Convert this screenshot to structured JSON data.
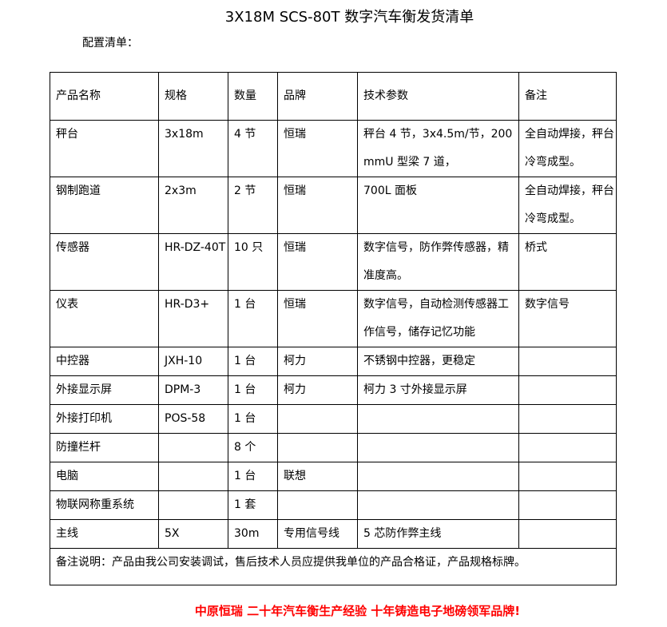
{
  "title": "3X18M SCS-80T 数字汽车衡发货清单",
  "subtitle": "配置清单：",
  "table": {
    "headers": [
      "产品名称",
      "规格",
      "数量",
      "品牌",
      "技术参数",
      "备注"
    ],
    "rows": [
      [
        "秤台",
        "3x18m",
        "4 节",
        "恒瑞",
        "秤台 4 节，3x4.5m/节，200mmU 型梁 7 道，",
        "全自动焊接，秤台冷弯成型。"
      ],
      [
        "钢制跑道",
        "2x3m",
        "2 节",
        "恒瑞",
        "700L 面板",
        "全自动焊接，秤台冷弯成型。"
      ],
      [
        "传感器",
        "HR-DZ-40T",
        "10 只",
        "恒瑞",
        "数字信号，防作弊传感器，精准度高。",
        "桥式"
      ],
      [
        "仪表",
        "HR-D3+",
        "1 台",
        "恒瑞",
        "数字信号，自动检测传感器工作信号，储存记忆功能",
        "数字信号"
      ],
      [
        "中控器",
        "JXH-10",
        "1 台",
        "柯力",
        "不锈钢中控器，更稳定",
        ""
      ],
      [
        "外接显示屏",
        "DPM-3",
        "1 台",
        "柯力",
        "柯力 3 寸外接显示屏",
        ""
      ],
      [
        "外接打印机",
        "POS-58",
        "1 台",
        "",
        "",
        ""
      ],
      [
        "防撞栏杆",
        "",
        "8 个",
        "",
        "",
        ""
      ],
      [
        "电脑",
        "",
        "1 台",
        "联想",
        "",
        ""
      ],
      [
        "物联网称重系统",
        "",
        "1 套",
        "",
        "",
        ""
      ],
      [
        "主线",
        "5X",
        "30m",
        "专用信号线",
        "5 芯防作弊主线",
        ""
      ]
    ],
    "note": "备注说明：产品由我公司安装调试，售后技术人员应提供我单位的产品合格证，产品规格标牌。"
  },
  "slogan": "中原恒瑞 二十年汽车衡生产经验 十年铸造电子地磅领军品牌!",
  "colors": {
    "slogan": "#ff0000"
  }
}
